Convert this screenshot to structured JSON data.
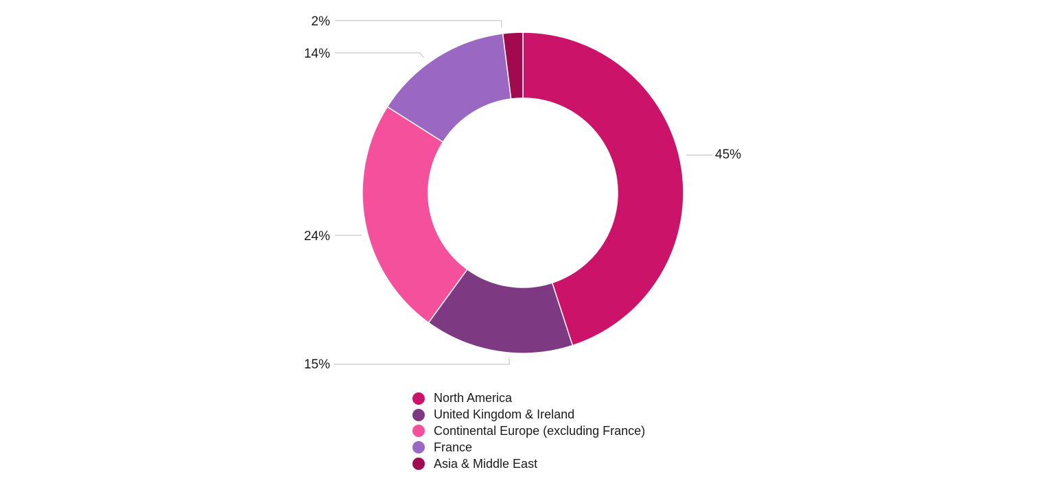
{
  "chart_data": {
    "type": "pie",
    "variant": "donut",
    "title": "",
    "categories": [
      "North America",
      "United Kingdom & Ireland",
      "Continental Europe (excluding France)",
      "France",
      "Asia & Middle East"
    ],
    "values": [
      45,
      15,
      24,
      14,
      2
    ],
    "value_labels": [
      "45%",
      "15%",
      "24%",
      "14%",
      "2%"
    ],
    "colors": [
      "#cb1369",
      "#7d3a83",
      "#f4509b",
      "#9a67c2",
      "#a10a4f"
    ],
    "legend": "bottom",
    "grid": false
  }
}
